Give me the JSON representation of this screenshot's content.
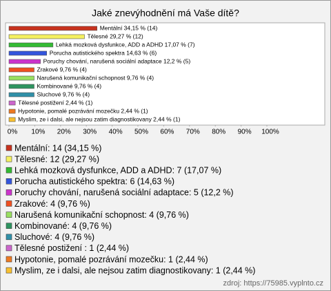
{
  "chart_data": {
    "type": "bar",
    "orientation": "horizontal",
    "title": "Jaké znevýhodnění má Vaše dítě?",
    "categories": [
      "Mentální",
      "Tělesné",
      "Lehká mozková dysfunkce, ADD a ADHD",
      "Porucha autistického spektra",
      "Poruchy chování, narušená sociální adaptace",
      "Zrakové",
      "Narušená komunikační schopnost",
      "Kombinované",
      "Sluchové",
      "Tělesné postižení",
      "Hypotonie, pomalé pozrávání mozečku",
      "Myslim, ze i dalsi, ale nejsou zatim diagnostikovany"
    ],
    "values": [
      34.15,
      29.27,
      17.07,
      14.63,
      12.2,
      9.76,
      9.76,
      9.76,
      9.76,
      2.44,
      2.44,
      2.44
    ],
    "value_labels": [
      "Mentální 34,15 % (14)",
      "Tělesné 29,27 % (12)",
      "Lehká mozková dysfunkce, ADD a ADHD 17,07 % (7)",
      "Porucha autistického spektra 14,63 % (6)",
      "Poruchy chování, narušená sociální adaptace 12,2 % (5)",
      "Zrakové 9,76 % (4)",
      "Narušená komunikační schopnost 9,76 % (4)",
      "Kombinované 9,76 % (4)",
      "Sluchové 9,76 % (4)",
      "Tělesné postižení 2,44 % (1)",
      "Hypotonie, pomalé pozrávání mozečku 2,44 % (1)",
      "Myslim, ze i dalsi, ale nejsou zatim diagnostikovany 2,44 % (1)"
    ],
    "legend_labels": [
      "Mentální: 14 (34,15 %)",
      "Tělesné: 12 (29,27 %)",
      "Lehká mozková dysfunkce, ADD a ADHD: 7 (17,07 %)",
      "Porucha autistického spektra: 6 (14,63 %)",
      "Poruchy chování, narušená sociální adaptace: 5 (12,2 %)",
      "Zrakové: 4 (9,76 %)",
      "Narušená komunikační schopnost: 4 (9,76 %)",
      "Kombinované: 4 (9,76 %)",
      "Sluchové: 4 (9,76 %)",
      "Tělesné postižení : 1 (2,44 %)",
      "Hypotonie, pomalé pozrávání mozečku: 1 (2,44 %)",
      "Myslim, ze i dalsi, ale nejsou zatim diagnostikovany: 1 (2,44 %)"
    ],
    "colors": [
      "#c8321e",
      "#f4f060",
      "#33bb33",
      "#3355dd",
      "#cc33cc",
      "#f05020",
      "#99e060",
      "#2e9460",
      "#3090a8",
      "#cc66cc",
      "#ee7a22",
      "#f8c030"
    ],
    "xlim": [
      0,
      100
    ],
    "xticks": [
      {
        "value": 0,
        "label": "0%"
      },
      {
        "value": 10,
        "label": "10%"
      },
      {
        "value": 20,
        "label": "20%"
      },
      {
        "value": 30,
        "label": "30%"
      },
      {
        "value": 40,
        "label": "40%"
      },
      {
        "value": 50,
        "label": "50%"
      },
      {
        "value": 60,
        "label": "60%"
      },
      {
        "value": 70,
        "label": "70%"
      },
      {
        "value": 80,
        "label": "80%"
      },
      {
        "value": 90,
        "label": "90%"
      },
      {
        "value": 100,
        "label": "100%"
      }
    ],
    "source": "zdroj: https://75985.vyplnto.cz"
  }
}
